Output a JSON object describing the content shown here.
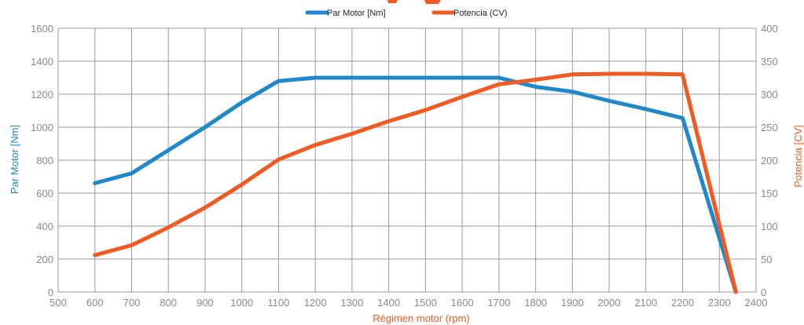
{
  "chart_data": {
    "type": "line",
    "x_label": "Régimen motor (rpm)",
    "y_left_label": "Par Motor [Nm]",
    "y_right_label": "Potencia [CV]",
    "x_range": [
      500,
      2400
    ],
    "x_ticks": [
      500,
      600,
      700,
      800,
      900,
      1000,
      1100,
      1200,
      1300,
      1400,
      1500,
      1600,
      1700,
      1800,
      1900,
      2000,
      2100,
      2200,
      2300,
      2400
    ],
    "y_left_range": [
      0,
      1600
    ],
    "y_left_ticks": [
      0,
      200,
      400,
      600,
      800,
      1000,
      1200,
      1400,
      1600
    ],
    "y_right_range": [
      0,
      400
    ],
    "y_right_ticks": [
      0,
      50,
      100,
      150,
      200,
      250,
      300,
      350,
      400
    ],
    "grid": true,
    "legend_position": "top-center",
    "series": [
      {
        "name": "Par Motor [Nm]",
        "axis": "left",
        "color": "#1f88c8",
        "x": [
          600,
          700,
          800,
          900,
          1000,
          1100,
          1200,
          1300,
          1400,
          1500,
          1600,
          1700,
          1800,
          1900,
          2000,
          2100,
          2200,
          2345
        ],
        "y": [
          660,
          720,
          860,
          1000,
          1150,
          1280,
          1300,
          1300,
          1300,
          1300,
          1300,
          1300,
          1245,
          1215,
          1160,
          1110,
          1055,
          0
        ]
      },
      {
        "name": "Potencia  (CV)",
        "axis": "right",
        "color": "#f15a22",
        "x": [
          600,
          700,
          800,
          900,
          1000,
          1100,
          1200,
          1300,
          1400,
          1500,
          1600,
          1700,
          1800,
          1900,
          2000,
          2100,
          2200,
          2345
        ],
        "y": [
          56,
          71,
          98,
          128,
          163,
          201,
          223,
          240,
          259,
          276,
          296,
          315,
          322,
          330,
          331,
          331,
          330,
          0
        ]
      }
    ]
  }
}
